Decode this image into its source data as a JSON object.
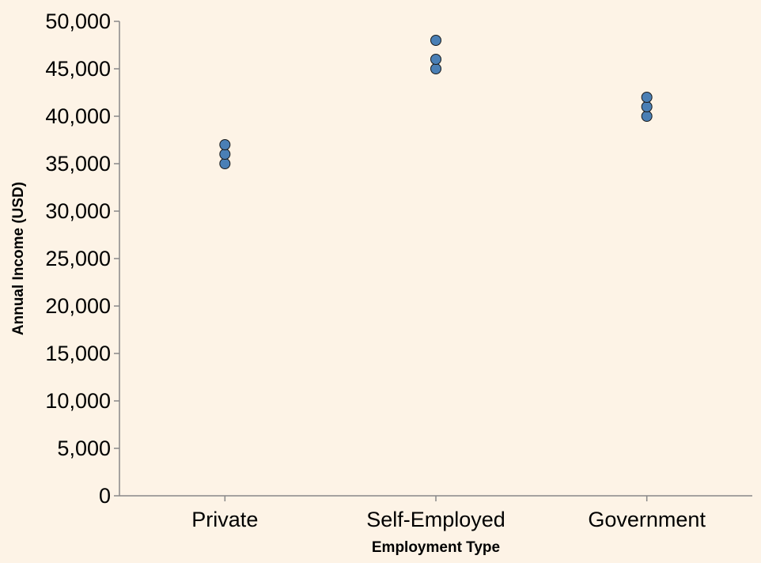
{
  "chart_data": {
    "type": "scatter",
    "xlabel": "Employment Type",
    "ylabel": "Annual Income (USD)",
    "categories": [
      "Private",
      "Self-Employed",
      "Government"
    ],
    "ylim": [
      0,
      50000
    ],
    "yticks": [
      0,
      5000,
      10000,
      15000,
      20000,
      25000,
      30000,
      35000,
      40000,
      45000,
      50000
    ],
    "ytick_labels": [
      "0",
      "5,000",
      "10,000",
      "15,000",
      "20,000",
      "25,000",
      "30,000",
      "35,000",
      "40,000",
      "45,000",
      "50,000"
    ],
    "points": [
      {
        "category": "Private",
        "value": 35000
      },
      {
        "category": "Private",
        "value": 36000
      },
      {
        "category": "Private",
        "value": 37000
      },
      {
        "category": "Self-Employed",
        "value": 45000
      },
      {
        "category": "Self-Employed",
        "value": 46000
      },
      {
        "category": "Self-Employed",
        "value": 48000
      },
      {
        "category": "Government",
        "value": 40000
      },
      {
        "category": "Government",
        "value": 41000
      },
      {
        "category": "Government",
        "value": 42000
      }
    ],
    "grid": false,
    "colors": {
      "background": "#fdf3e6",
      "point_fill": "#4a7fb5",
      "point_stroke": "#1a1a1a",
      "axis": "#888888",
      "text": "#000000"
    }
  }
}
